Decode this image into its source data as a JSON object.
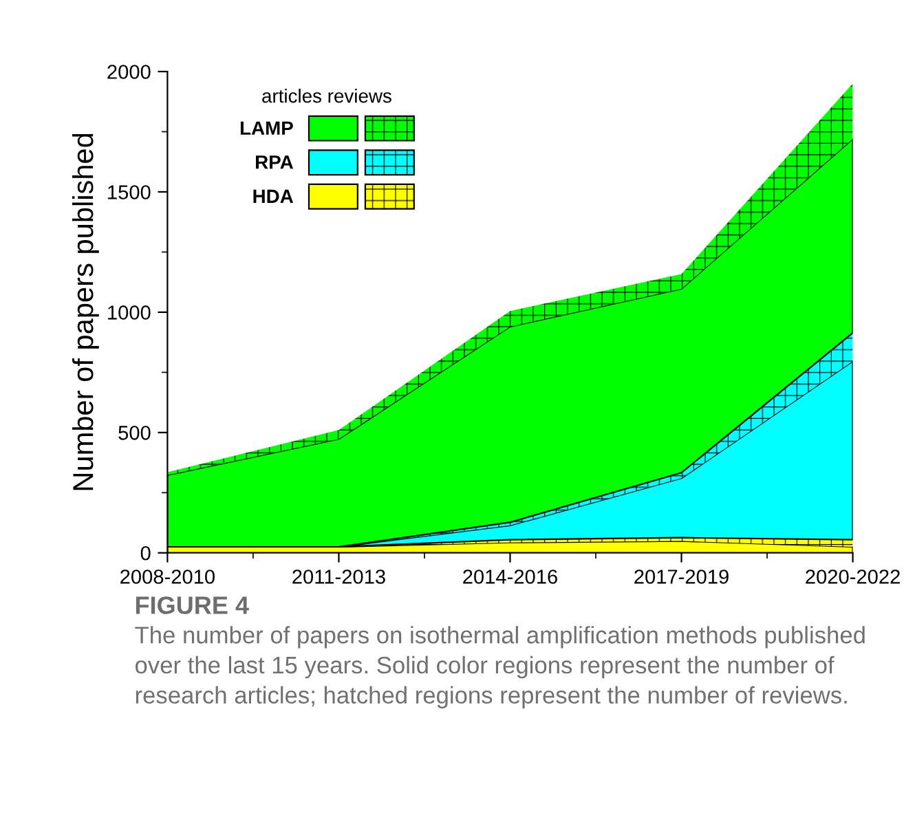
{
  "chart_data": {
    "type": "area",
    "stacked": true,
    "title": "FIGURE 4",
    "ylabel": "Number of papers published",
    "legend_title": "articles reviews",
    "categories": [
      "2008-2010",
      "2011-2013",
      "2014-2016",
      "2017-2019",
      "2020-2022"
    ],
    "series": [
      {
        "name": "HDA",
        "color": "#ffff00",
        "values": [
          25,
          25,
          43,
          49,
          25
        ]
      },
      {
        "color": "#ffff00",
        "values": [
          0,
          0,
          12,
          14,
          30
        ]
      },
      {
        "name": "RPA",
        "color": "#00ffff",
        "values": [
          0,
          0,
          59,
          247,
          741
        ]
      },
      {
        "color": "#00ffff",
        "values": [
          0,
          0,
          13,
          23,
          118
        ]
      },
      {
        "name": "LAMP",
        "color": "#00ff00",
        "values": [
          298,
          448,
          813,
          764,
          806
        ]
      },
      {
        "color": "#00ff00",
        "values": [
          12,
          37,
          65,
          61,
          230
        ]
      }
    ],
    "ylim": [
      0,
      2000
    ],
    "yticks": [
      0,
      500,
      1000,
      1500,
      2000
    ],
    "grid": false,
    "legend": "top left",
    "annotations": [
      "The number of papers on isothermal amplification methods published over the last 15 years. Solid color regions represent the number of research articles; hatched regions represent the number of reviews."
    ]
  }
}
